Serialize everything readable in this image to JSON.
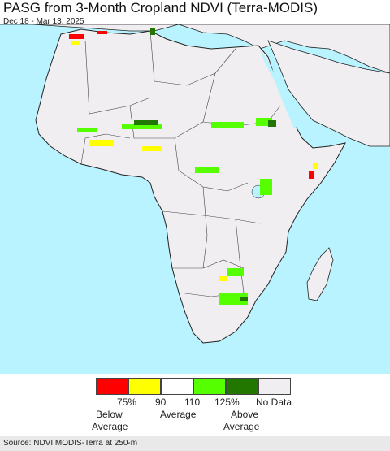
{
  "header": {
    "title": "PASG from 3-Month Cropland NDVI (Terra-MODIS)",
    "date_range": "Dec 18 - Mar 13, 2025"
  },
  "map": {
    "region": "Africa",
    "ocean_color": "#b9f3ff",
    "land_color": "#f1eef1",
    "border_color": "#222222"
  },
  "legend": {
    "colors": [
      "#ff0000",
      "#ffff00",
      "#ffffff",
      "#55ff00",
      "#227700",
      "#f1eef1"
    ],
    "tick_labels": [
      "75%",
      "90",
      "110",
      "125%",
      "No Data"
    ],
    "below_line1": "Below",
    "below_line2": "Average",
    "average": "Average",
    "above_line1": "Above",
    "above_line2": "Average"
  },
  "footer": {
    "source": "Source: NDVI MODIS-Terra at 250-m"
  }
}
